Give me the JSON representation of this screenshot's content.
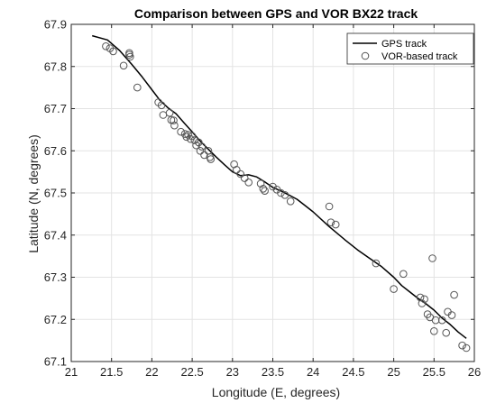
{
  "chart_data": {
    "type": "line",
    "title": "Comparison between GPS and VOR BX22 track",
    "xlabel": "Longitude (E, degrees)",
    "ylabel": "Latitude (N, degrees)",
    "xlim": [
      21,
      26
    ],
    "ylim": [
      67.1,
      67.9
    ],
    "xticks": [
      "21",
      "21.5",
      "22",
      "22.5",
      "23",
      "23.5",
      "24",
      "24.5",
      "25",
      "25.5",
      "26"
    ],
    "yticks": [
      "67.1",
      "67.2",
      "67.3",
      "67.4",
      "67.5",
      "67.6",
      "67.7",
      "67.8",
      "67.9"
    ],
    "grid": true,
    "legend_position": "top-right",
    "series": [
      {
        "name": "GPS track",
        "style": "line",
        "color": "#000000",
        "x": [
          21.26,
          21.45,
          21.6,
          21.75,
          21.88,
          22.0,
          22.1,
          22.2,
          22.3,
          22.4,
          22.5,
          22.6,
          22.72,
          22.8,
          22.9,
          23.0,
          23.1,
          23.2,
          23.3,
          23.4,
          23.5,
          23.6,
          23.7,
          23.8,
          23.9,
          24.0,
          24.2,
          24.4,
          24.55,
          24.7,
          24.85,
          25.0,
          25.1,
          25.2,
          25.3,
          25.4,
          25.5,
          25.6,
          25.7,
          25.8,
          25.9
        ],
        "y": [
          67.873,
          67.863,
          67.838,
          67.805,
          67.775,
          67.745,
          67.72,
          67.702,
          67.688,
          67.666,
          67.645,
          67.623,
          67.6,
          67.585,
          67.567,
          67.55,
          67.541,
          67.543,
          67.538,
          67.526,
          67.513,
          67.505,
          67.495,
          67.485,
          67.47,
          67.455,
          67.42,
          67.388,
          67.365,
          67.345,
          67.325,
          67.3,
          67.28,
          67.265,
          67.25,
          67.237,
          67.222,
          67.203,
          67.188,
          67.17,
          67.155
        ]
      },
      {
        "name": "VOR-based track",
        "style": "markers",
        "marker": "circle",
        "color": "#555555",
        "x": [
          21.43,
          21.48,
          21.52,
          21.65,
          21.72,
          21.73,
          21.72,
          21.82,
          22.08,
          22.12,
          22.14,
          22.22,
          22.24,
          22.27,
          22.28,
          22.36,
          22.41,
          22.43,
          22.45,
          22.48,
          22.5,
          22.53,
          22.55,
          22.58,
          22.6,
          22.62,
          22.65,
          22.7,
          22.72,
          22.73,
          23.02,
          23.05,
          23.1,
          23.15,
          23.2,
          23.35,
          23.38,
          23.4,
          23.5,
          23.55,
          23.6,
          23.65,
          23.72,
          24.2,
          24.22,
          24.28,
          24.78,
          25.0,
          25.12,
          25.33,
          25.35,
          25.38,
          25.42,
          25.45,
          25.48,
          25.5,
          25.52,
          25.6,
          25.65,
          25.67,
          25.72,
          25.75,
          25.85,
          25.9
        ],
        "y": [
          67.848,
          67.843,
          67.836,
          67.802,
          67.832,
          67.823,
          67.828,
          67.75,
          67.715,
          67.708,
          67.685,
          67.69,
          67.673,
          67.672,
          67.66,
          67.645,
          67.64,
          67.633,
          67.638,
          67.628,
          67.635,
          67.625,
          67.613,
          67.62,
          67.6,
          67.61,
          67.59,
          67.6,
          67.585,
          67.58,
          67.568,
          67.555,
          67.545,
          67.535,
          67.525,
          67.522,
          67.51,
          67.505,
          67.515,
          67.508,
          67.5,
          67.495,
          67.48,
          67.468,
          67.43,
          67.425,
          67.333,
          67.272,
          67.308,
          67.252,
          67.238,
          67.248,
          67.212,
          67.205,
          67.345,
          67.172,
          67.198,
          67.198,
          67.168,
          67.218,
          67.21,
          67.258,
          67.138,
          67.132
        ]
      }
    ]
  }
}
